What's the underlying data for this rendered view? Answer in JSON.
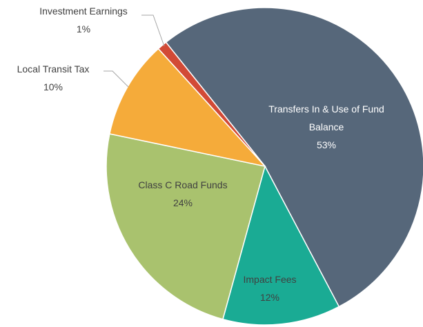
{
  "chart_data": {
    "type": "pie",
    "categories": [
      "Transfers In & Use of Fund Balance",
      "Impact Fees",
      "Class C Road Funds",
      "Local Transit Tax",
      "Investment Earnings"
    ],
    "values": [
      53,
      12,
      24,
      10,
      1
    ],
    "value_labels": [
      "53%",
      "12%",
      "24%",
      "10%",
      "1%"
    ],
    "colors": [
      "#56677a",
      "#1aab94",
      "#a9c26e",
      "#f5ab3a",
      "#d24a36"
    ]
  }
}
